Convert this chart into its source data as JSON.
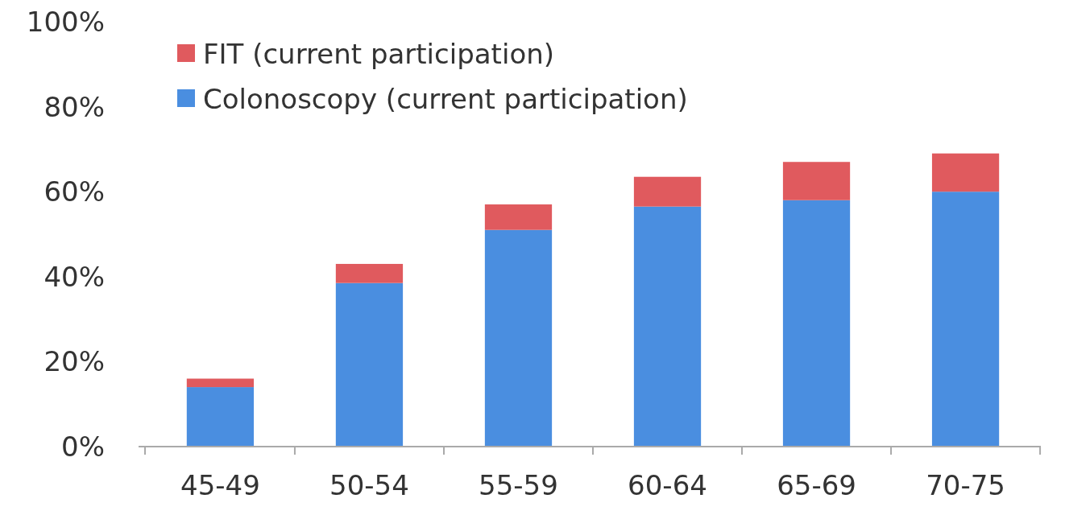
{
  "chart_data": {
    "type": "bar",
    "stacked": true,
    "categories": [
      "45-49",
      "50-54",
      "55-59",
      "60-64",
      "65-69",
      "70-75"
    ],
    "series": [
      {
        "name": "Colonoscopy (current participation)",
        "color": "#4a8ee0",
        "values": [
          14,
          38.5,
          51,
          56.5,
          58,
          60
        ]
      },
      {
        "name": "FIT (current participation)",
        "color": "#e05a5e",
        "values": [
          2,
          4.5,
          6,
          7,
          9,
          9
        ]
      }
    ],
    "ylim": [
      0,
      100
    ],
    "yticks": [
      {
        "value": 0,
        "label": "0%"
      },
      {
        "value": 20,
        "label": "20%"
      },
      {
        "value": 40,
        "label": "40%"
      },
      {
        "value": 60,
        "label": "60%"
      },
      {
        "value": 80,
        "label": "80%"
      },
      {
        "value": 100,
        "label": "100%"
      }
    ],
    "legend": "top left",
    "grid": false
  }
}
